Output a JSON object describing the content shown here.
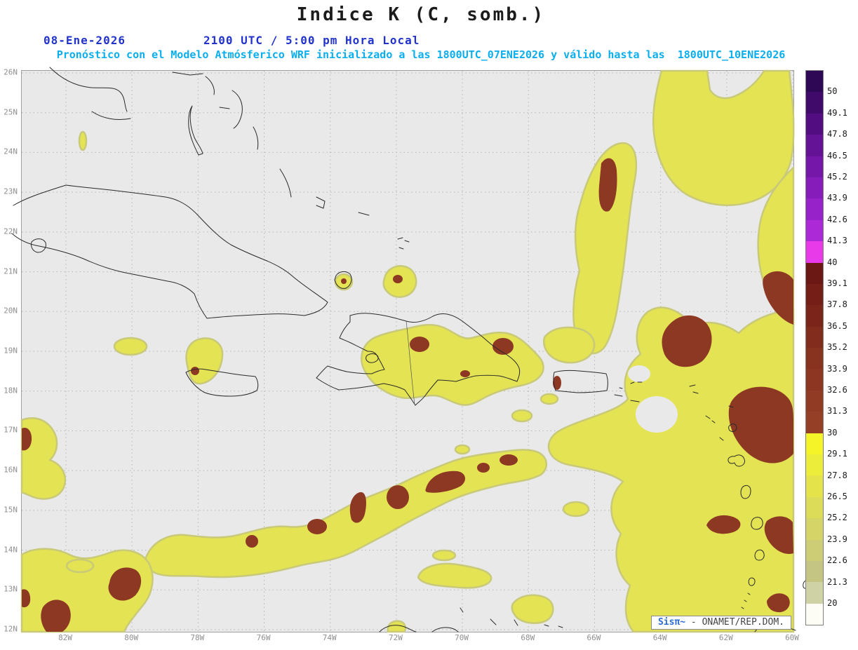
{
  "header": {
    "title": "Indice K (C, somb.)",
    "date": "08-Ene-2026",
    "time": "2100 UTC / 5:00 pm Hora Local",
    "forecast_line": "Pronóstico con el Modelo Atmósferico WRF inicializado a las 1800UTC_07ENE2026 y válido hasta las  1800UTC_10ENE2026"
  },
  "map": {
    "lat_ticks": [
      "26N",
      "25N",
      "24N",
      "23N",
      "22N",
      "21N",
      "20N",
      "19N",
      "18N",
      "17N",
      "16N",
      "15N",
      "14N",
      "13N",
      "12N"
    ],
    "lon_ticks": [
      "82W",
      "80W",
      "78W",
      "76W",
      "74W",
      "72W",
      "70W",
      "68W",
      "66W",
      "64W",
      "62W",
      "60W"
    ]
  },
  "colorbar": {
    "values": [
      "50",
      "49.1",
      "47.8",
      "46.5",
      "45.2",
      "43.9",
      "42.6",
      "41.3",
      "40",
      "39.1",
      "37.8",
      "36.5",
      "35.2",
      "33.9",
      "32.6",
      "31.3",
      "30",
      "29.1",
      "27.8",
      "26.5",
      "25.2",
      "23.9",
      "22.6",
      "21.3",
      "20"
    ],
    "colors": [
      "#2e0854",
      "#400a6b",
      "#520e81",
      "#641296",
      "#7517a9",
      "#861cba",
      "#9722c9",
      "#ab29d6",
      "#e83ae8",
      "#6b1713",
      "#741e17",
      "#7b251a",
      "#822c1d",
      "#883220",
      "#8d3722",
      "#913b24",
      "#953f27",
      "#f4f428",
      "#ecec3a",
      "#e4e44a",
      "#dcdc59",
      "#d5d567",
      "#cdcd75",
      "#c5c583",
      "#ced2a4",
      "#fdfdf5"
    ]
  },
  "attribution": {
    "brand": "Sisπ~",
    "text": " - ONAMET/REP.DOM."
  },
  "colors": {
    "map_bg": "#e9e9e9",
    "yellow": "#e3e353",
    "yellow_edge": "#c9c97a",
    "maroon": "#8d3823",
    "grid": "#b5b5b5",
    "coast": "#2a2a2a",
    "axis": "#8f8f8f",
    "title": "#1c1c1c",
    "header_blue": "#2233cc",
    "header_cyan": "#0aaeec"
  }
}
